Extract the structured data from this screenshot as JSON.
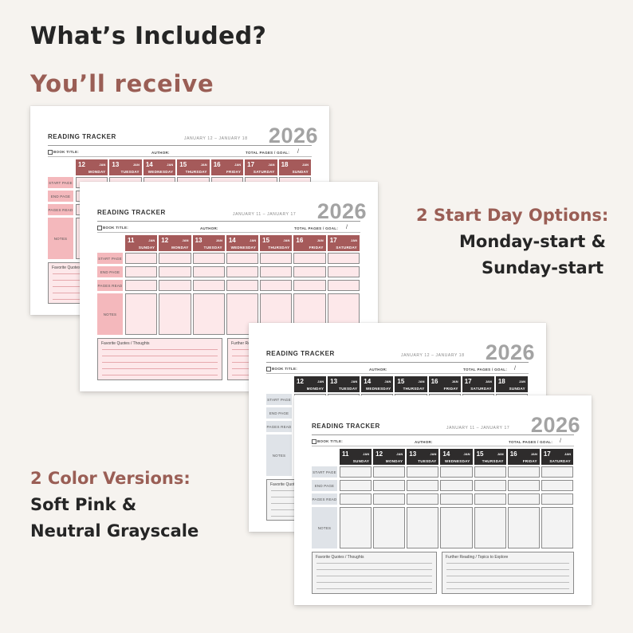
{
  "heading": "What’s Included?",
  "subheading": "You’ll receive",
  "start_day": {
    "title": "2 Start Day Options:",
    "line1": "Monday-start &",
    "line2": "Sunday-start"
  },
  "color_versions": {
    "title": "2 Color Versions:",
    "line1": "Soft Pink &",
    "line2": "Neutral Grayscale"
  },
  "colors": {
    "accent": "#9a5e55",
    "pink_header": "#a55a5a",
    "pink_cell": "#fde8ea",
    "pink_label": "#f4b8bc",
    "gray_header": "#2e2c2c",
    "gray_cell": "#f3f3f3",
    "gray_label": "#dfe3e8"
  },
  "tracker": {
    "title": "READING TRACKER",
    "year": "2026",
    "book_title_label": "BOOK TITLE:",
    "author_label": "AUTHOR:",
    "total_pages_label": "TOTAL PAGES / GOAL:",
    "slash": "/",
    "row_labels": [
      "START PAGE",
      "END PAGE",
      "PAGES READ",
      "NOTES"
    ],
    "quotes_label": "Favorite Quotes / Thoughts",
    "further_label": "Further Reading / Topics to Explore",
    "further_label_short": "Further Re",
    "favorite_short": "Favorite Quotes",
    "monday_range": "JANUARY 12 – JANUARY 18",
    "sunday_range": "JANUARY 11 – JANUARY 17",
    "month": "JAN",
    "monday_days": [
      {
        "num": "12",
        "name": "MONDAY"
      },
      {
        "num": "13",
        "name": "TUESDAY"
      },
      {
        "num": "14",
        "name": "WEDNESDAY"
      },
      {
        "num": "15",
        "name": "THURSDAY"
      },
      {
        "num": "16",
        "name": "FRIDAY"
      },
      {
        "num": "17",
        "name": "SATURDAY"
      },
      {
        "num": "18",
        "name": "SUNDAY"
      }
    ],
    "sunday_days": [
      {
        "num": "11",
        "name": "SUNDAY"
      },
      {
        "num": "12",
        "name": "MONDAY"
      },
      {
        "num": "13",
        "name": "TUESDAY"
      },
      {
        "num": "14",
        "name": "WEDNESDAY"
      },
      {
        "num": "15",
        "name": "THURSDAY"
      },
      {
        "num": "16",
        "name": "FRIDAY"
      },
      {
        "num": "17",
        "name": "SATURDAY"
      }
    ]
  }
}
